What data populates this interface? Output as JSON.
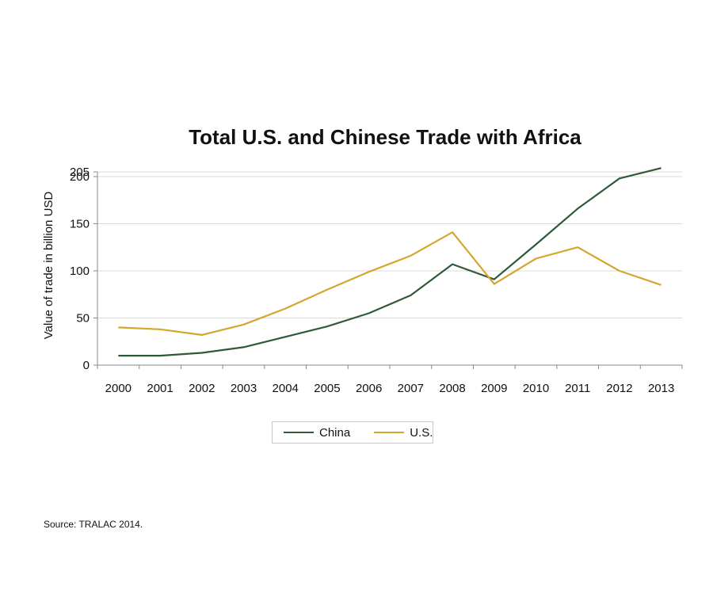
{
  "chart_data": {
    "type": "line",
    "title": "Total U.S. and Chinese Trade with Africa",
    "xlabel": "",
    "ylabel": "Value of trade in billion USD",
    "categories": [
      "2000",
      "2001",
      "2002",
      "2003",
      "2004",
      "2005",
      "2006",
      "2007",
      "2008",
      "2009",
      "2010",
      "2011",
      "2012",
      "2013"
    ],
    "yticks": [
      0,
      50,
      100,
      150,
      200,
      205
    ],
    "ylim": [
      0,
      205
    ],
    "grid": true,
    "legend_position": "bottom",
    "series": [
      {
        "name": "China",
        "color": "#2f5a3a",
        "values": [
          10,
          10,
          13,
          19,
          30,
          41,
          55,
          74,
          107,
          91,
          128,
          166,
          198,
          209
        ]
      },
      {
        "name": "U.S.",
        "color": "#d4a72c",
        "values": [
          40,
          38,
          32,
          43,
          60,
          80,
          99,
          116,
          141,
          86,
          113,
          125,
          100,
          85
        ]
      }
    ]
  },
  "source": "Source: TRALAC 2014."
}
